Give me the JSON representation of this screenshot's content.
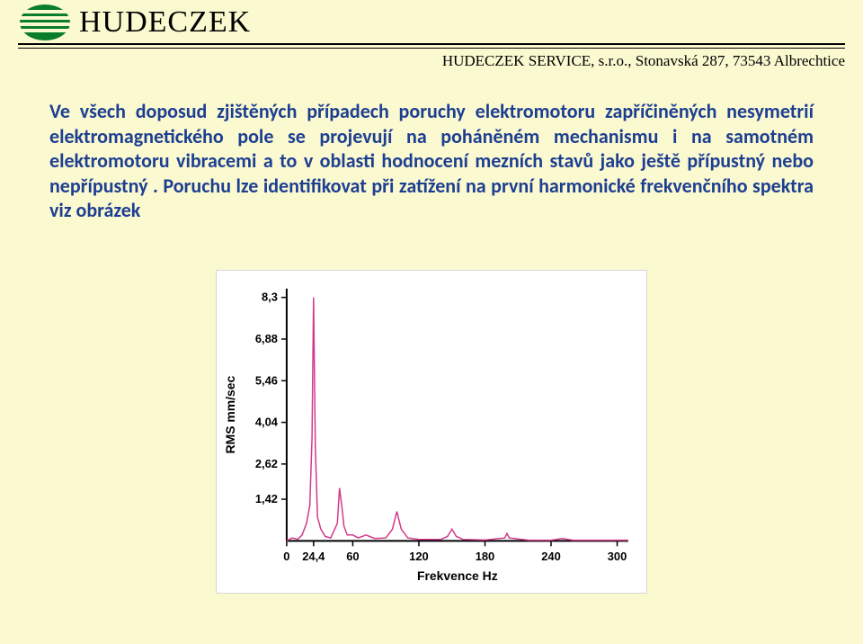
{
  "header": {
    "company_name": "HUDECZEK",
    "service_line": "HUDECZEK SERVICE, s.r.o., Stonavská 287, 73543 Albrechtice"
  },
  "body_text": "Ve všech doposud zjištěných případech poruchy elektromotoru zapříčiněných nesymetrií elektromagnetického pole se projevují na poháněném mechanismu i na samotném elektromotoru vibracemi a to v oblasti hodnocení mezních stavů jako ještě přípustný nebo nepřípustný . Poruchu lze identifikovat při zatížení na první harmonické frekvenčního spektra viz obrázek",
  "chart": {
    "type": "line",
    "xlabel": "Frekvence Hz",
    "ylabel": "RMS mm/sec",
    "label_fontsize": 14,
    "tick_fontsize": 13,
    "x_ticks": [
      {
        "v": 0,
        "label": "0"
      },
      {
        "v": 24.4,
        "label": "24,4"
      },
      {
        "v": 60,
        "label": "60"
      },
      {
        "v": 120,
        "label": "120"
      },
      {
        "v": 180,
        "label": "180"
      },
      {
        "v": 240,
        "label": "240"
      },
      {
        "v": 300,
        "label": "300"
      }
    ],
    "y_ticks": [
      {
        "v": 8.3,
        "label": "8,3"
      },
      {
        "v": 6.88,
        "label": "6,88"
      },
      {
        "v": 5.46,
        "label": "5,46"
      },
      {
        "v": 4.04,
        "label": "4,04"
      },
      {
        "v": 2.62,
        "label": "2,62"
      },
      {
        "v": 1.42,
        "label": "1,42"
      }
    ],
    "xlim": [
      0,
      310
    ],
    "ylim": [
      0,
      8.6
    ],
    "line_color": "#d13a8a",
    "line_width": 1.5,
    "axis_color": "#000000",
    "background_color": "#ffffff",
    "data": [
      [
        0,
        0
      ],
      [
        5,
        0.1
      ],
      [
        10,
        0.05
      ],
      [
        14,
        0.2
      ],
      [
        18,
        0.6
      ],
      [
        21,
        1.2
      ],
      [
        23,
        3.5
      ],
      [
        24.4,
        8.3
      ],
      [
        26,
        3.2
      ],
      [
        28,
        0.8
      ],
      [
        31,
        0.4
      ],
      [
        35,
        0.15
      ],
      [
        40,
        0.1
      ],
      [
        46,
        0.6
      ],
      [
        48,
        1.8
      ],
      [
        50,
        1.2
      ],
      [
        52,
        0.5
      ],
      [
        55,
        0.2
      ],
      [
        60,
        0.2
      ],
      [
        65,
        0.1
      ],
      [
        72,
        0.2
      ],
      [
        80,
        0.08
      ],
      [
        90,
        0.1
      ],
      [
        96,
        0.4
      ],
      [
        100,
        1.0
      ],
      [
        104,
        0.4
      ],
      [
        110,
        0.1
      ],
      [
        120,
        0.05
      ],
      [
        130,
        0.05
      ],
      [
        140,
        0.05
      ],
      [
        146,
        0.15
      ],
      [
        150,
        0.4
      ],
      [
        154,
        0.15
      ],
      [
        160,
        0.05
      ],
      [
        180,
        0.03
      ],
      [
        198,
        0.1
      ],
      [
        200,
        0.25
      ],
      [
        202,
        0.1
      ],
      [
        220,
        0.02
      ],
      [
        240,
        0.02
      ],
      [
        250,
        0.08
      ],
      [
        260,
        0.02
      ],
      [
        280,
        0.02
      ],
      [
        300,
        0.02
      ],
      [
        310,
        0.02
      ]
    ]
  }
}
